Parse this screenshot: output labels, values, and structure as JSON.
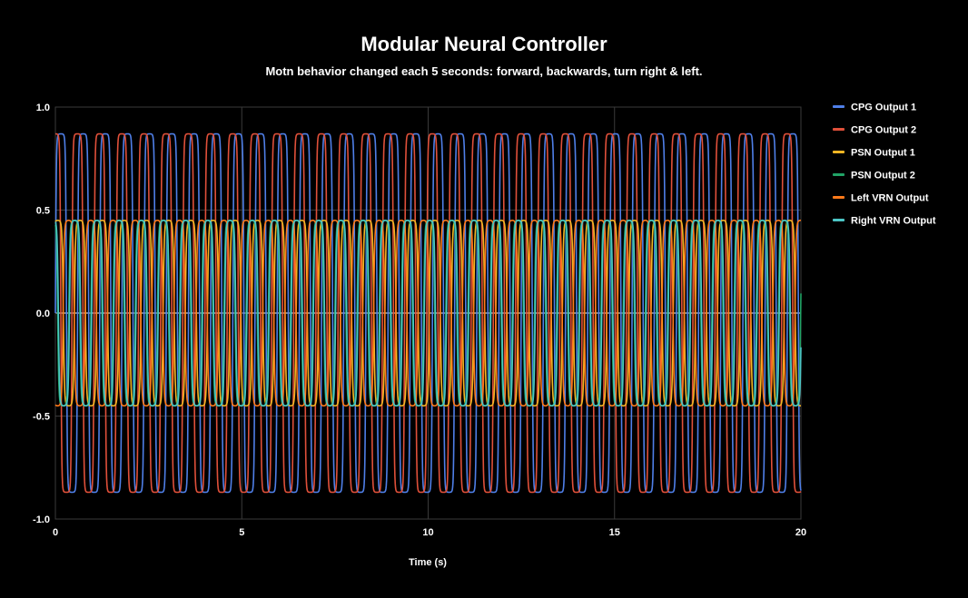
{
  "background": "#000000",
  "chart_data": {
    "type": "line",
    "title": "Modular Neural Controller",
    "subtitle": "Motn behavior changed  each 5 seconds: forward, backwards, turn right & left.",
    "xlabel": "Time (s)",
    "ylabel": "",
    "xlim": [
      0,
      20
    ],
    "ylim": [
      -1.0,
      1.0
    ],
    "x_ticks": [
      "0",
      "5",
      "10",
      "15",
      "20"
    ],
    "y_ticks": [
      "1.0",
      "0.5",
      "0.0",
      "-0.5",
      "-1.0"
    ],
    "grid": true,
    "legend_position": "right",
    "oscillation_period": 0.595,
    "series": [
      {
        "name": "CPG Output 1",
        "color": "#4f7fe8",
        "amplitude": 0.87,
        "phase": 0.0,
        "offset": 0.0,
        "sharpness": 4.0
      },
      {
        "name": "CPG Output 2",
        "color": "#e0503a",
        "amplitude": 0.87,
        "phase": 1.6,
        "offset": 0.0,
        "sharpness": 4.0
      },
      {
        "name": "PSN Output 1",
        "color": "#f2b624",
        "amplitude": 0.45,
        "phase": 0.9,
        "offset": 0.0,
        "sharpness": 3.0
      },
      {
        "name": "PSN Output 2",
        "color": "#21a366",
        "amplitude": 0.45,
        "phase": 2.5,
        "offset": 0.0,
        "sharpness": 3.0
      },
      {
        "name": "Left VRN Output",
        "color": "#ff7a1a",
        "amplitude": 0.45,
        "phase": 4.1,
        "offset": 0.0,
        "sharpness": 3.0
      },
      {
        "name": "Right VRN Output",
        "color": "#4cc5c5",
        "amplitude": 0.45,
        "phase": 2.3,
        "offset": 0.0,
        "sharpness": 3.0
      }
    ]
  }
}
